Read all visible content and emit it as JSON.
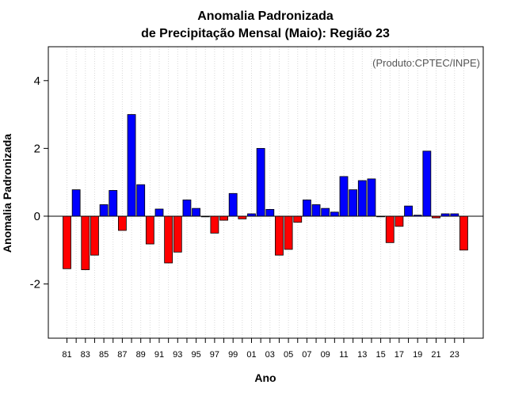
{
  "chart_data": {
    "type": "bar",
    "title": "Anomalia Padronizada",
    "subtitle": "de Precipitação Mensal (Maio): Região 23",
    "xlabel": "Ano",
    "ylabel": "Anomalia Padronizada",
    "annotation": "(Produto:CPTEC/INPE)",
    "ylim": [
      -3.6,
      5.0
    ],
    "yticks": [
      -2,
      0,
      2,
      4
    ],
    "x_tick_labels": [
      "81",
      "83",
      "85",
      "87",
      "89",
      "91",
      "93",
      "95",
      "97",
      "99",
      "01",
      "03",
      "05",
      "07",
      "09",
      "11",
      "13",
      "15",
      "17",
      "19",
      "21",
      "23"
    ],
    "categories": [
      "1981",
      "1982",
      "1983",
      "1984",
      "1985",
      "1986",
      "1987",
      "1988",
      "1989",
      "1990",
      "1991",
      "1992",
      "1993",
      "1994",
      "1995",
      "1996",
      "1997",
      "1998",
      "1999",
      "2000",
      "2001",
      "2002",
      "2003",
      "2004",
      "2005",
      "2006",
      "2007",
      "2008",
      "2009",
      "2010",
      "2011",
      "2012",
      "2013",
      "2014",
      "2015",
      "2016",
      "2017",
      "2018",
      "2019",
      "2020",
      "2021",
      "2022",
      "2023",
      "2024"
    ],
    "values": [
      -1.55,
      0.78,
      -1.58,
      -1.15,
      0.34,
      0.76,
      -0.42,
      3.0,
      0.93,
      -0.82,
      0.21,
      -1.38,
      -1.06,
      0.48,
      0.23,
      -0.02,
      -0.5,
      -0.12,
      0.67,
      -0.08,
      0.07,
      2.0,
      0.2,
      -1.15,
      -0.98,
      -0.18,
      0.48,
      0.34,
      0.23,
      0.12,
      1.17,
      0.78,
      1.05,
      1.1,
      0.0,
      -0.78,
      -0.3,
      0.3,
      0.03,
      1.92,
      -0.05,
      0.07,
      0.07,
      -1.0
    ],
    "colors": {
      "positive": "#0000ff",
      "negative": "#ff0000",
      "grid": "#d9d9d9",
      "axis": "#000000"
    },
    "grid": true
  }
}
